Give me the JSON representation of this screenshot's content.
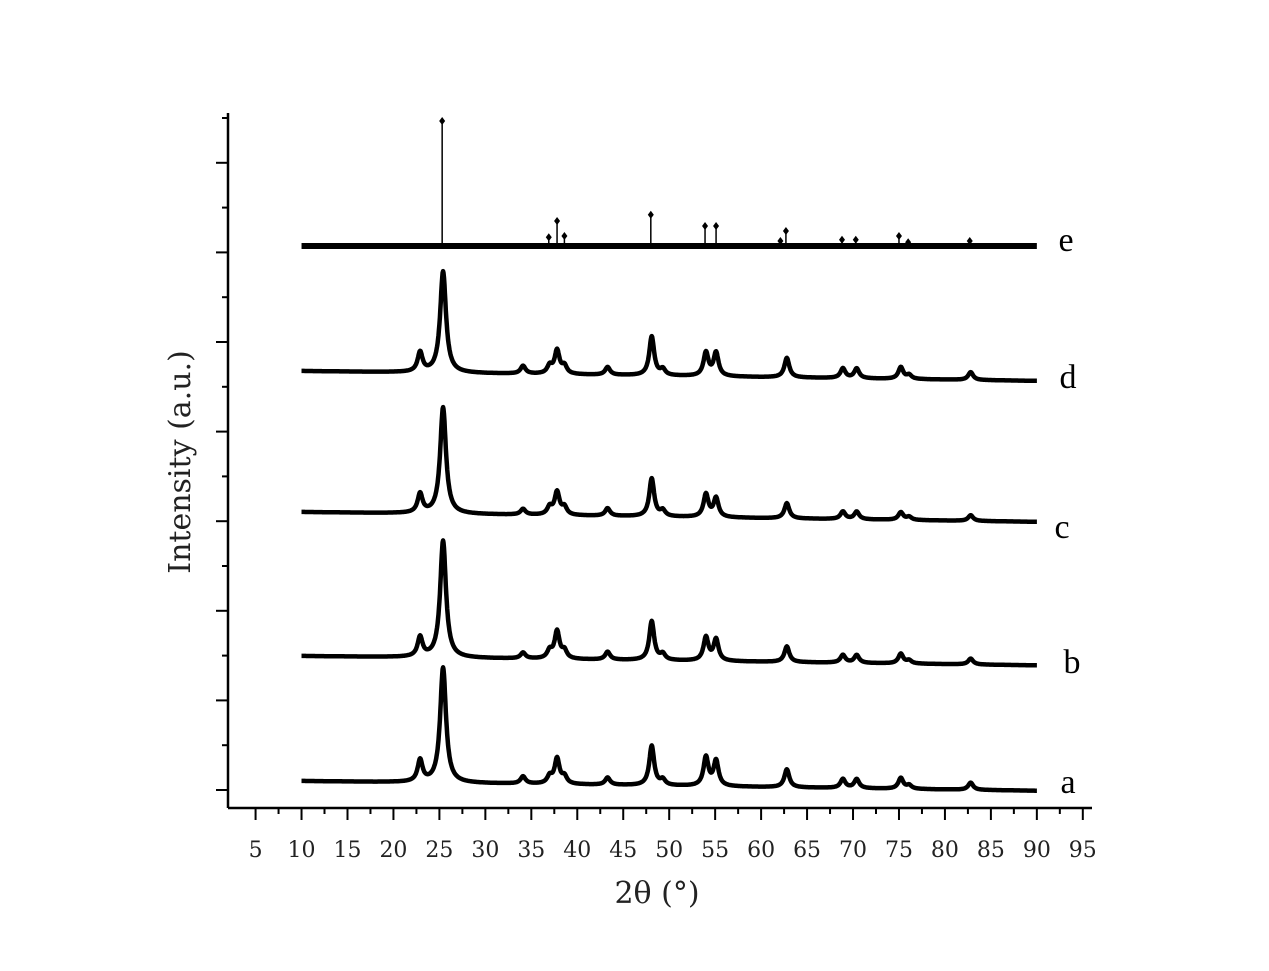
{
  "chart_data": {
    "type": "line",
    "xlabel": "2θ (°)",
    "ylabel": "Intensity (a.u.)",
    "xlim": [
      2,
      96
    ],
    "x_ticks": [
      "5",
      "10",
      "15",
      "20",
      "25",
      "30",
      "35",
      "40",
      "45",
      "50",
      "55",
      "60",
      "65",
      "70",
      "75",
      "80",
      "85",
      "90",
      "95"
    ],
    "y_ticks_labeled": false,
    "grid": false,
    "legend": "inline labels at right end of each trace",
    "line_color": "#000000",
    "series": [
      {
        "name": "a",
        "baseline": 0.8,
        "peaks": [
          {
            "x": 22.9,
            "h": 6
          },
          {
            "x": 25.4,
            "h": 32
          },
          {
            "x": 34.1,
            "h": 2
          },
          {
            "x": 37.0,
            "h": 2
          },
          {
            "x": 37.8,
            "h": 7
          },
          {
            "x": 38.6,
            "h": 2
          },
          {
            "x": 43.3,
            "h": 2
          },
          {
            "x": 48.1,
            "h": 11
          },
          {
            "x": 49.3,
            "h": 1.5
          },
          {
            "x": 54.0,
            "h": 8
          },
          {
            "x": 55.1,
            "h": 7
          },
          {
            "x": 62.8,
            "h": 5
          },
          {
            "x": 68.9,
            "h": 2.5
          },
          {
            "x": 70.4,
            "h": 2.5
          },
          {
            "x": 75.2,
            "h": 3
          },
          {
            "x": 76.1,
            "h": 1
          },
          {
            "x": 82.8,
            "h": 2
          }
        ]
      },
      {
        "name": "b",
        "baseline": 1.0,
        "peaks": [
          {
            "x": 22.9,
            "h": 5
          },
          {
            "x": 25.4,
            "h": 30
          },
          {
            "x": 34.1,
            "h": 1.5
          },
          {
            "x": 37.0,
            "h": 2
          },
          {
            "x": 37.8,
            "h": 7
          },
          {
            "x": 38.6,
            "h": 2
          },
          {
            "x": 43.3,
            "h": 2
          },
          {
            "x": 48.1,
            "h": 10
          },
          {
            "x": 49.3,
            "h": 1.5
          },
          {
            "x": 54.0,
            "h": 6
          },
          {
            "x": 55.1,
            "h": 5.5
          },
          {
            "x": 62.8,
            "h": 4
          },
          {
            "x": 68.9,
            "h": 2
          },
          {
            "x": 70.4,
            "h": 2
          },
          {
            "x": 75.2,
            "h": 2.5
          },
          {
            "x": 76.1,
            "h": 0.8
          },
          {
            "x": 82.8,
            "h": 1.5
          }
        ]
      },
      {
        "name": "c",
        "baseline": 0.8,
        "peaks": [
          {
            "x": 22.9,
            "h": 5
          },
          {
            "x": 25.4,
            "h": 28
          },
          {
            "x": 34.1,
            "h": 1.5
          },
          {
            "x": 37.0,
            "h": 2
          },
          {
            "x": 37.8,
            "h": 6
          },
          {
            "x": 38.6,
            "h": 2
          },
          {
            "x": 43.3,
            "h": 2
          },
          {
            "x": 48.1,
            "h": 10
          },
          {
            "x": 49.3,
            "h": 1.5
          },
          {
            "x": 54.0,
            "h": 6
          },
          {
            "x": 55.1,
            "h": 5
          },
          {
            "x": 62.8,
            "h": 4
          },
          {
            "x": 68.9,
            "h": 2
          },
          {
            "x": 70.4,
            "h": 2
          },
          {
            "x": 75.2,
            "h": 2
          },
          {
            "x": 76.1,
            "h": 0.8
          },
          {
            "x": 82.8,
            "h": 1.5
          }
        ]
      },
      {
        "name": "d",
        "baseline": 0.8,
        "peaks": [
          {
            "x": 22.9,
            "h": 5
          },
          {
            "x": 25.4,
            "h": 26
          },
          {
            "x": 34.1,
            "h": 2
          },
          {
            "x": 37.0,
            "h": 2
          },
          {
            "x": 37.8,
            "h": 6
          },
          {
            "x": 38.6,
            "h": 2
          },
          {
            "x": 43.3,
            "h": 2
          },
          {
            "x": 48.1,
            "h": 10
          },
          {
            "x": 49.3,
            "h": 1.5
          },
          {
            "x": 54.0,
            "h": 6
          },
          {
            "x": 55.1,
            "h": 6
          },
          {
            "x": 62.8,
            "h": 5
          },
          {
            "x": 68.9,
            "h": 2.5
          },
          {
            "x": 70.4,
            "h": 2.5
          },
          {
            "x": 75.2,
            "h": 3
          },
          {
            "x": 76.1,
            "h": 1
          },
          {
            "x": 82.8,
            "h": 2
          }
        ]
      },
      {
        "name": "e",
        "type": "stick",
        "sticks": [
          {
            "x": 25.3,
            "h": 100
          },
          {
            "x": 36.9,
            "h": 7
          },
          {
            "x": 37.8,
            "h": 20
          },
          {
            "x": 38.6,
            "h": 8
          },
          {
            "x": 48.0,
            "h": 25
          },
          {
            "x": 53.9,
            "h": 16
          },
          {
            "x": 55.1,
            "h": 16
          },
          {
            "x": 62.1,
            "h": 4
          },
          {
            "x": 62.7,
            "h": 12
          },
          {
            "x": 68.8,
            "h": 5
          },
          {
            "x": 70.3,
            "h": 5
          },
          {
            "x": 75.0,
            "h": 8
          },
          {
            "x": 76.0,
            "h": 3
          },
          {
            "x": 82.7,
            "h": 4
          }
        ]
      }
    ]
  }
}
